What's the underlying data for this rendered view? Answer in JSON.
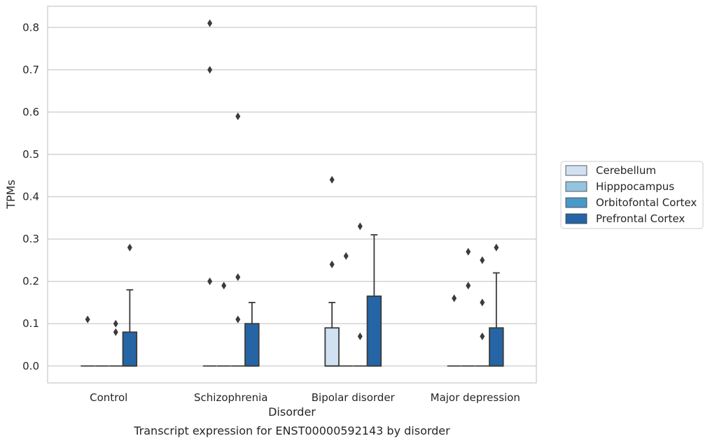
{
  "chart_data": {
    "type": "box",
    "title": "",
    "caption": "Transcript expression for ENST00000592143 by disorder",
    "xlabel": "Disorder",
    "ylabel": "TPMs",
    "ylim": [
      -0.04,
      0.85
    ],
    "yticks": [
      "0.0",
      "0.1",
      "0.2",
      "0.3",
      "0.4",
      "0.5",
      "0.6",
      "0.7",
      "0.8"
    ],
    "grid": true,
    "legend_position": "right",
    "categories": [
      "Control",
      "Schizophrenia",
      "Bipolar disorder",
      "Major depression"
    ],
    "series": [
      {
        "name": "Cerebellum",
        "color": "#d0e1f2",
        "boxes": [
          {
            "q1": 0,
            "median": 0,
            "q3": 0,
            "whisker_low": 0,
            "whisker_high": 0,
            "outliers": [
              0.11
            ]
          },
          {
            "q1": 0,
            "median": 0,
            "q3": 0,
            "whisker_low": 0,
            "whisker_high": 0,
            "outliers": [
              0.2,
              0.7,
              0.81
            ]
          },
          {
            "q1": 0,
            "median": 0,
            "q3": 0.09,
            "whisker_low": 0,
            "whisker_high": 0.15,
            "outliers": [
              0.24,
              0.44
            ]
          },
          {
            "q1": 0,
            "median": 0,
            "q3": 0,
            "whisker_low": 0,
            "whisker_high": 0,
            "outliers": [
              0.16
            ]
          }
        ]
      },
      {
        "name": "Hipppocampus",
        "color": "#94c4df",
        "boxes": [
          {
            "q1": 0,
            "median": 0,
            "q3": 0,
            "whisker_low": 0,
            "whisker_high": 0,
            "outliers": []
          },
          {
            "q1": 0,
            "median": 0,
            "q3": 0,
            "whisker_low": 0,
            "whisker_high": 0,
            "outliers": [
              0.19
            ]
          },
          {
            "q1": 0,
            "median": 0,
            "q3": 0,
            "whisker_low": 0,
            "whisker_high": 0,
            "outliers": [
              0.26
            ]
          },
          {
            "q1": 0,
            "median": 0,
            "q3": 0,
            "whisker_low": 0,
            "whisker_high": 0,
            "outliers": [
              0.19,
              0.27
            ]
          }
        ]
      },
      {
        "name": "Orbitofontal Cortex",
        "color": "#4a98c9",
        "boxes": [
          {
            "q1": 0,
            "median": 0,
            "q3": 0,
            "whisker_low": 0,
            "whisker_high": 0,
            "outliers": [
              0.08,
              0.1
            ]
          },
          {
            "q1": 0,
            "median": 0,
            "q3": 0,
            "whisker_low": 0,
            "whisker_high": 0,
            "outliers": [
              0.11,
              0.21,
              0.59
            ]
          },
          {
            "q1": 0,
            "median": 0,
            "q3": 0,
            "whisker_low": 0,
            "whisker_high": 0,
            "outliers": [
              0.07,
              0.33
            ]
          },
          {
            "q1": 0,
            "median": 0,
            "q3": 0,
            "whisker_low": 0,
            "whisker_high": 0,
            "outliers": [
              0.07,
              0.15,
              0.25
            ]
          }
        ]
      },
      {
        "name": "Prefrontal Cortex",
        "color": "#2565a6",
        "boxes": [
          {
            "q1": 0,
            "median": 0,
            "q3": 0.08,
            "whisker_low": 0,
            "whisker_high": 0.18,
            "outliers": [
              0.28
            ]
          },
          {
            "q1": 0,
            "median": 0,
            "q3": 0.1,
            "whisker_low": 0,
            "whisker_high": 0.15,
            "outliers": []
          },
          {
            "q1": 0,
            "median": 0,
            "q3": 0.165,
            "whisker_low": 0,
            "whisker_high": 0.31,
            "outliers": []
          },
          {
            "q1": 0,
            "median": 0,
            "q3": 0.09,
            "whisker_low": 0,
            "whisker_high": 0.22,
            "outliers": [
              0.28
            ]
          }
        ]
      }
    ]
  }
}
